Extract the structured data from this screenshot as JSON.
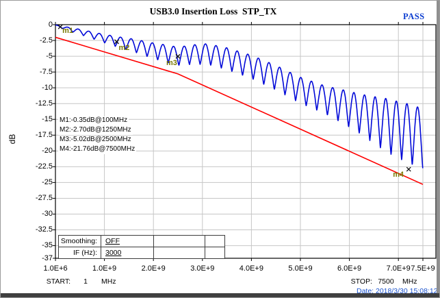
{
  "header": {
    "title": "USB3.0 Insertion Loss  STP_TX",
    "status": "PASS",
    "status_color": "#0a3cd0"
  },
  "marker_readouts": [
    "M1:-0.35dB@100MHz",
    "M2:-2.70dB@1250MHz",
    "M3:-5.02dB@2500MHz",
    "M4:-21.76dB@7500MHz"
  ],
  "controls": {
    "rows": [
      {
        "label": "Smoothing:",
        "value": "OFF"
      },
      {
        "label": "IF (Hz):",
        "value": "3000"
      }
    ]
  },
  "footer": {
    "start_label": "START:",
    "start_value": "1",
    "start_unit": "MHz",
    "stop_label": "STOP:",
    "stop_value": "7500",
    "stop_unit": "MHz",
    "date_label": "Date:",
    "date_value": "2018/3/30 15:08:12",
    "date_color": "#1a52cc"
  },
  "chart_data": {
    "type": "line",
    "title": "USB3.0 Insertion Loss  STP_TX",
    "ylabel": "dB",
    "grid": true,
    "grid_color": "#c6c6c6",
    "xlim_ghz": [
      0.001,
      7.5
    ],
    "ylim_db": [
      -37,
      0
    ],
    "x_ticks": [
      {
        "label": "1.0E+6",
        "ghz": 0.001
      },
      {
        "label": "1.0E+9",
        "ghz": 1
      },
      {
        "label": "2.0E+9",
        "ghz": 2
      },
      {
        "label": "3.0E+9",
        "ghz": 3
      },
      {
        "label": "4.0E+9",
        "ghz": 4
      },
      {
        "label": "5.0E+9",
        "ghz": 5
      },
      {
        "label": "6.0E+9",
        "ghz": 6
      },
      {
        "label": "7.0E+9",
        "ghz": 7
      },
      {
        "label": "7.5E+9",
        "ghz": 7.5
      }
    ],
    "y_ticks": [
      {
        "label": "0",
        "db": 0
      },
      {
        "label": "-2.5",
        "db": -2.5
      },
      {
        "label": "-5",
        "db": -5
      },
      {
        "label": "-7.5",
        "db": -7.5
      },
      {
        "label": "-10",
        "db": -10
      },
      {
        "label": "-12.5",
        "db": -12.5
      },
      {
        "label": "-15",
        "db": -15
      },
      {
        "label": "-17.5",
        "db": -17.5
      },
      {
        "label": "-20",
        "db": -20
      },
      {
        "label": "-22.5",
        "db": -22.5
      },
      {
        "label": "-25",
        "db": -25
      },
      {
        "label": "-27.5",
        "db": -27.5
      },
      {
        "label": "-30",
        "db": -30
      },
      {
        "label": "-32.5",
        "db": -32.5
      },
      {
        "label": "-35",
        "db": -35
      },
      {
        "label": "-37",
        "db": -37
      }
    ],
    "series": [
      {
        "name": "insertion-loss-trace",
        "color": "#0008d8",
        "description": "measured insertion loss, rippled curve",
        "ripple_period_ghz": 0.2165,
        "ripple_phase_peak_ghz": 0.03,
        "midline_db_by_ghz": [
          [
            0.001,
            -0.1
          ],
          [
            0.1,
            -0.35
          ],
          [
            0.3,
            -0.75
          ],
          [
            0.6,
            -1.35
          ],
          [
            0.9,
            -2.0
          ],
          [
            1.25,
            -2.7
          ],
          [
            1.6,
            -3.3
          ],
          [
            2.0,
            -4.15
          ],
          [
            2.5,
            -5.0
          ],
          [
            2.8,
            -4.75
          ],
          [
            3.1,
            -4.65
          ],
          [
            3.5,
            -5.4
          ],
          [
            4.0,
            -6.7
          ],
          [
            4.5,
            -8.4
          ],
          [
            5.0,
            -10.4
          ],
          [
            5.5,
            -11.9
          ],
          [
            6.0,
            -13.4
          ],
          [
            6.5,
            -15.1
          ],
          [
            7.0,
            -16.7
          ],
          [
            7.5,
            -18.1
          ]
        ],
        "ripple_amplitude_db_by_ghz": [
          [
            0.001,
            0.05
          ],
          [
            0.3,
            0.3
          ],
          [
            0.8,
            0.55
          ],
          [
            1.5,
            0.95
          ],
          [
            2.2,
            1.35
          ],
          [
            3.0,
            1.6
          ],
          [
            4.0,
            1.85
          ],
          [
            4.8,
            2.0
          ],
          [
            5.5,
            2.2
          ],
          [
            6.2,
            3.1
          ],
          [
            6.8,
            4.3
          ],
          [
            7.2,
            4.7
          ],
          [
            7.5,
            4.8
          ]
        ]
      },
      {
        "name": "limit-line",
        "color": "#ff0000",
        "description": "pass/fail limit line",
        "points_ghz_db": [
          [
            0.001,
            -2.0
          ],
          [
            2.5,
            -7.8
          ],
          [
            7.5,
            -25.3
          ]
        ]
      }
    ],
    "markers": [
      {
        "id": "m1",
        "freq_mhz": 100,
        "db": -0.35
      },
      {
        "id": "m2",
        "freq_mhz": 1250,
        "db": -2.7
      },
      {
        "id": "m3",
        "freq_mhz": 2500,
        "db": -5.02
      },
      {
        "id": "m4",
        "freq_mhz": 7500,
        "db": -21.76,
        "draw_at_ghz": 7.21,
        "draw_at_db": -22.9
      }
    ],
    "marker_label_color": "#787800"
  }
}
